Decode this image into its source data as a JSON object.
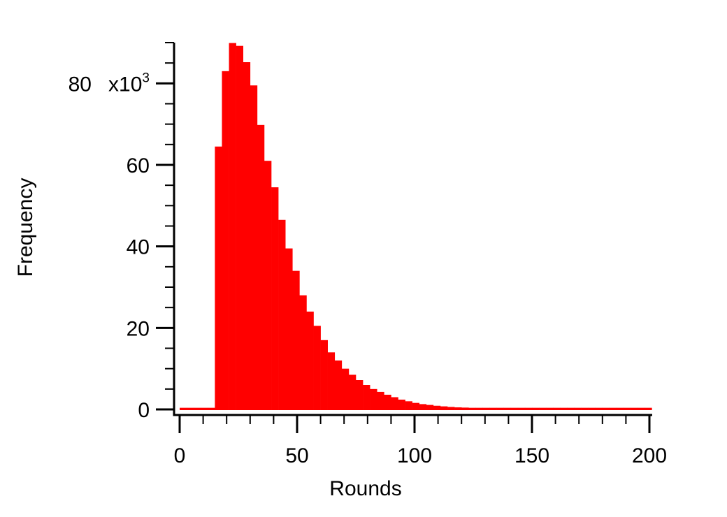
{
  "chart_data": {
    "type": "bar",
    "title": "",
    "xlabel": "Rounds",
    "ylabel": "Frequency",
    "xlim": [
      0,
      200
    ],
    "ylim": [
      0,
      90000
    ],
    "bin_width": 3,
    "x_ticks": [
      0,
      50,
      100,
      150,
      200
    ],
    "x_tick_labels": [
      "0",
      "50",
      "100",
      "150",
      "200"
    ],
    "y_ticks": [
      0,
      20000,
      40000,
      60000,
      80000
    ],
    "y_tick_labels": [
      "0",
      "20",
      "40",
      "60",
      "80"
    ],
    "y_multiplier_base": "x10",
    "y_multiplier_exp": "3",
    "grid": false,
    "bar_color": "#ff0000",
    "series": [
      {
        "x": [
          0,
          3,
          6,
          9,
          12,
          15,
          18,
          21,
          24,
          27,
          30,
          33,
          36,
          39,
          42,
          45,
          48,
          51,
          54,
          57,
          60,
          63,
          66,
          69,
          72,
          75,
          78,
          81,
          84,
          87,
          90,
          93,
          96,
          99,
          102,
          105,
          108,
          111,
          114,
          117,
          120,
          123,
          126,
          129,
          132,
          135,
          138,
          141,
          144,
          147,
          150,
          153,
          156,
          159,
          162,
          165,
          168,
          171,
          174,
          177,
          180,
          183,
          186,
          189,
          192,
          195,
          198
        ],
        "values": [
          400,
          400,
          400,
          400,
          400,
          64500,
          83000,
          89900,
          89200,
          85200,
          79500,
          69800,
          61000,
          54500,
          46500,
          39500,
          34000,
          28000,
          24000,
          20500,
          17000,
          14000,
          12000,
          10000,
          8500,
          7200,
          6000,
          5000,
          4300,
          3600,
          3000,
          2400,
          2000,
          1600,
          1300,
          1100,
          900,
          750,
          600,
          500,
          450,
          400,
          400,
          400,
          400,
          400,
          400,
          400,
          400,
          400,
          400,
          400,
          400,
          400,
          400,
          400,
          400,
          400,
          400,
          400,
          400,
          400,
          400,
          400,
          400,
          400,
          400
        ]
      }
    ]
  }
}
